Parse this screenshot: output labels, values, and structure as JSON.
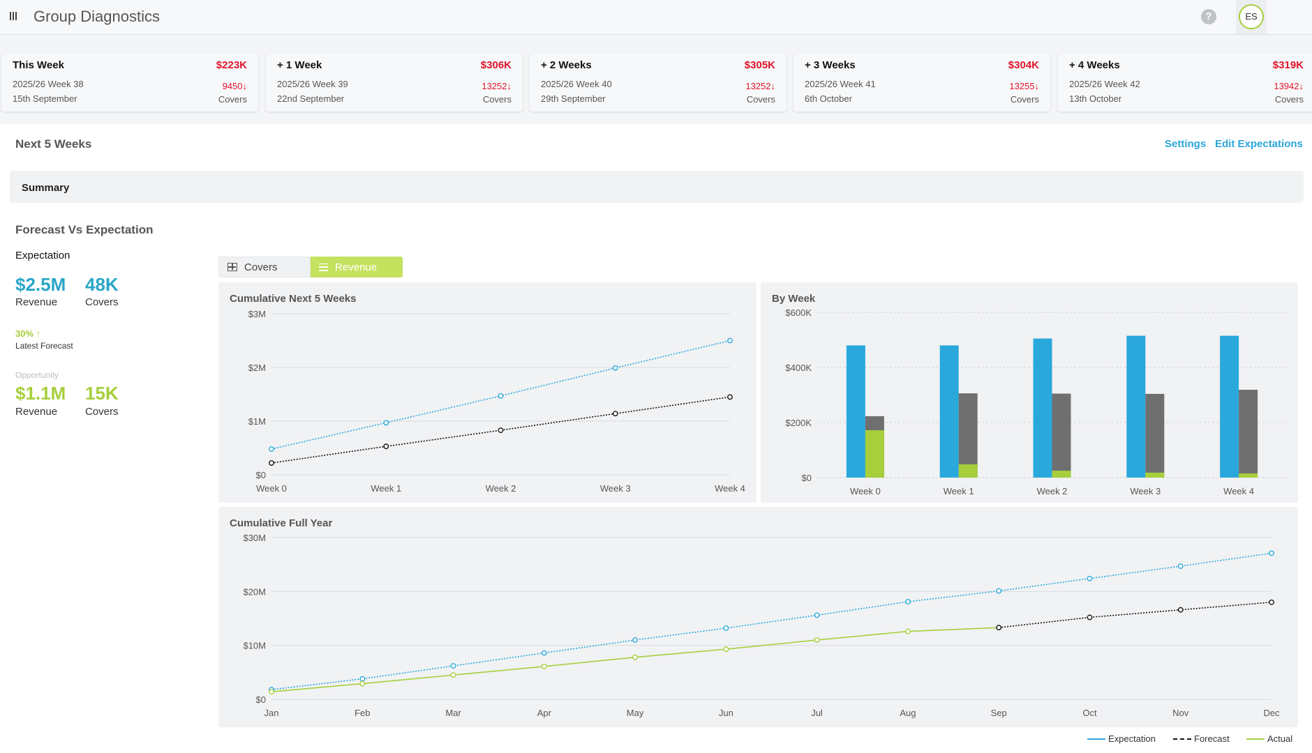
{
  "header": {
    "title": "Group Diagnostics",
    "help_label": "?",
    "avatar_initials": "ES"
  },
  "week_cards": [
    {
      "title": "This Week",
      "revenue": "$223K",
      "week": "2025/26 Week 38",
      "date": "15th September",
      "covers": "9450",
      "covers_label": "Covers"
    },
    {
      "title": "+ 1 Week",
      "revenue": "$306K",
      "week": "2025/26 Week 39",
      "date": "22nd September",
      "covers": "13252",
      "covers_label": "Covers"
    },
    {
      "title": "+ 2 Weeks",
      "revenue": "$305K",
      "week": "2025/26 Week 40",
      "date": "29th September",
      "covers": "13252",
      "covers_label": "Covers"
    },
    {
      "title": "+ 3 Weeks",
      "revenue": "$304K",
      "week": "2025/26 Week 41",
      "date": "6th October",
      "covers": "13255",
      "covers_label": "Covers"
    },
    {
      "title": "+ 4 Weeks",
      "revenue": "$319K",
      "week": "2025/26 Week 42",
      "date": "13th October",
      "covers": "13942",
      "covers_label": "Covers"
    }
  ],
  "section": {
    "title": "Next 5 Weeks",
    "settings_label": "Settings",
    "edit_label": "Edit Expectations",
    "summary_label": "Summary"
  },
  "forecast_panel": {
    "title": "Forecast Vs Expectation",
    "expectation_title": "Expectation",
    "expectation_revenue": "$2.5M",
    "expectation_covers": "48K",
    "revenue_label": "Revenue",
    "covers_label": "Covers",
    "latest_pct": "30% ↑",
    "latest_label": "Latest Forecast",
    "opportunity_label": "Opportunity",
    "opportunity_revenue": "$1.1M",
    "opportunity_covers": "15K"
  },
  "toggle": {
    "covers_label": "Covers",
    "revenue_label": "Revenue",
    "selected": "Revenue"
  },
  "colors": {
    "expectation": "#2aa8dc",
    "forecast": "#6f6f6f",
    "actual": "#a6cf3b",
    "negative": "#e0142b",
    "link": "#2ca6db"
  },
  "chart_data": [
    {
      "type": "line",
      "title": "Cumulative Next 5 Weeks",
      "x": [
        "Week 0",
        "Week 1",
        "Week 2",
        "Week 3",
        "Week 4"
      ],
      "y_ticks": [
        "$0",
        "$1M",
        "$2M",
        "$3M"
      ],
      "ylim": [
        0,
        3
      ],
      "series": [
        {
          "name": "Expectation",
          "values": [
            0.48,
            0.97,
            1.47,
            1.99,
            2.5
          ]
        },
        {
          "name": "Forecast",
          "values": [
            0.22,
            0.53,
            0.83,
            1.14,
            1.45
          ]
        }
      ]
    },
    {
      "type": "bar",
      "title": "By Week",
      "categories": [
        "Week 0",
        "Week 1",
        "Week 2",
        "Week 3",
        "Week 4"
      ],
      "y_ticks": [
        "$0",
        "$200K",
        "$400K",
        "$600K"
      ],
      "ylim": [
        0,
        600
      ],
      "series": [
        {
          "name": "Expectation",
          "values": [
            480,
            480,
            505,
            515,
            515
          ]
        },
        {
          "name": "Forecast",
          "values": [
            223,
            306,
            305,
            304,
            319
          ]
        },
        {
          "name": "Actual",
          "values": [
            172,
            48,
            25,
            18,
            15
          ]
        }
      ]
    },
    {
      "type": "line",
      "title": "Cumulative Full Year",
      "x": [
        "Jan",
        "Feb",
        "Mar",
        "Apr",
        "May",
        "Jun",
        "Jul",
        "Aug",
        "Sep",
        "Oct",
        "Nov",
        "Dec"
      ],
      "y_ticks": [
        "$0",
        "$10M",
        "$20M",
        "$30M"
      ],
      "ylim": [
        0,
        30
      ],
      "series": [
        {
          "name": "Expectation",
          "values": [
            1.8,
            3.8,
            6.2,
            8.6,
            11.0,
            13.2,
            15.6,
            18.1,
            20.1,
            22.4,
            24.7,
            27.1
          ]
        },
        {
          "name": "Actual",
          "values": [
            1.4,
            2.9,
            4.5,
            6.1,
            7.8,
            9.3,
            11.0,
            12.6,
            13.3,
            null,
            null,
            null
          ]
        },
        {
          "name": "Forecast",
          "values": [
            null,
            null,
            null,
            null,
            null,
            null,
            null,
            null,
            13.3,
            15.2,
            16.6,
            18.0
          ]
        }
      ]
    }
  ],
  "legend": [
    {
      "name": "Expectation"
    },
    {
      "name": "Forecast"
    },
    {
      "name": "Actual"
    }
  ]
}
